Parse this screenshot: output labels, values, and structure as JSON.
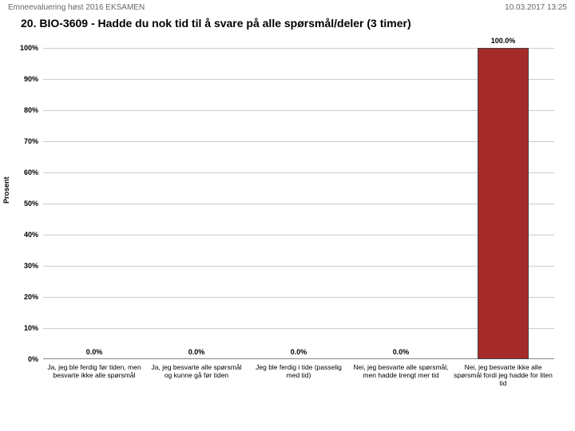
{
  "header": {
    "left": "Emneevaluering høst 2016 EKSAMEN",
    "right": "10.03.2017 13:25"
  },
  "title": "20. BIO-3609 - Hadde du nok tid til å svare på alle spørsmål/deler (3 timer)",
  "chart": {
    "type": "bar",
    "ylabel": "Prosent",
    "ylim": [
      0,
      100
    ],
    "ytick_step": 10,
    "grid_color": "#cccccc",
    "background_color": "#ffffff",
    "bar_color": "#a52a2a",
    "bar_border": "#444444",
    "value_suffix": "%",
    "label_fontsize": 9,
    "categories": [
      "Ja, jeg ble ferdig før tiden, men besvarte ikke alle spørsmål",
      "Ja, jeg besvarte alle spørsmål og kunne gå før tiden",
      "Jeg ble ferdig i tide (passelig med tid)",
      "Nei, jeg besvarte alle spørsmål, men hadde trengt mer tid",
      "Nei, jeg besvarte ikke alle spørsmål fordi jeg hadde for liten tid"
    ],
    "values": [
      0.0,
      0.0,
      0.0,
      0.0,
      100.0
    ],
    "value_labels": [
      "0.0%",
      "0.0%",
      "0.0%",
      "0.0%",
      "100.0%"
    ]
  }
}
